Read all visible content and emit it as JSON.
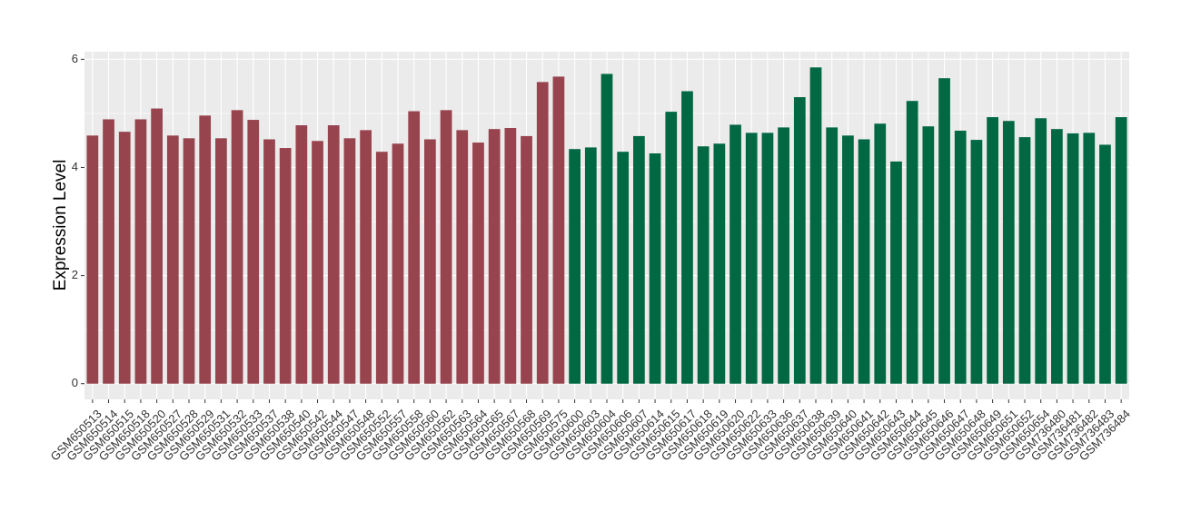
{
  "chart_data": {
    "type": "bar",
    "y_label": "Expression Level",
    "categories": [
      "GSM650513",
      "GSM650514",
      "GSM650515",
      "GSM650518",
      "GSM650520",
      "GSM650527",
      "GSM650528",
      "GSM650529",
      "GSM650531",
      "GSM650532",
      "GSM650533",
      "GSM650537",
      "GSM650538",
      "GSM650540",
      "GSM650542",
      "GSM650544",
      "GSM650547",
      "GSM650548",
      "GSM650552",
      "GSM650557",
      "GSM650558",
      "GSM650560",
      "GSM650562",
      "GSM650563",
      "GSM650564",
      "GSM650565",
      "GSM650567",
      "GSM650568",
      "GSM650569",
      "GSM650575",
      "GSM650600",
      "GSM650603",
      "GSM650604",
      "GSM650606",
      "GSM650607",
      "GSM650614",
      "GSM650615",
      "GSM650617",
      "GSM650618",
      "GSM650619",
      "GSM650620",
      "GSM650622",
      "GSM650633",
      "GSM650636",
      "GSM650637",
      "GSM650638",
      "GSM650639",
      "GSM650640",
      "GSM650641",
      "GSM650642",
      "GSM650643",
      "GSM650644",
      "GSM650645",
      "GSM650646",
      "GSM650647",
      "GSM650648",
      "GSM650649",
      "GSM650651",
      "GSM650652",
      "GSM650654",
      "GSM736480",
      "GSM736481",
      "GSM736482",
      "GSM736483",
      "GSM736484"
    ],
    "values": [
      4.59,
      4.89,
      4.66,
      4.89,
      5.09,
      4.59,
      4.54,
      4.96,
      4.54,
      5.06,
      4.88,
      4.52,
      4.36,
      4.78,
      4.49,
      4.78,
      4.54,
      4.69,
      4.29,
      4.44,
      5.04,
      4.52,
      5.06,
      4.69,
      4.46,
      4.71,
      4.73,
      4.58,
      5.58,
      5.68,
      4.34,
      4.37,
      5.73,
      4.29,
      4.58,
      4.26,
      5.03,
      5.41,
      4.39,
      4.44,
      4.79,
      4.64,
      4.64,
      4.74,
      5.3,
      5.85,
      4.74,
      4.59,
      4.52,
      4.81,
      4.11,
      5.23,
      4.76,
      5.65,
      4.68,
      4.51,
      4.93,
      4.86,
      4.56,
      4.91,
      4.71,
      4.63,
      4.64,
      4.42,
      4.93
    ],
    "colors": [
      "#98444f",
      "#98444f",
      "#98444f",
      "#98444f",
      "#98444f",
      "#98444f",
      "#98444f",
      "#98444f",
      "#98444f",
      "#98444f",
      "#98444f",
      "#98444f",
      "#98444f",
      "#98444f",
      "#98444f",
      "#98444f",
      "#98444f",
      "#98444f",
      "#98444f",
      "#98444f",
      "#98444f",
      "#98444f",
      "#98444f",
      "#98444f",
      "#98444f",
      "#98444f",
      "#98444f",
      "#98444f",
      "#98444f",
      "#98444f",
      "#006843",
      "#006843",
      "#006843",
      "#006843",
      "#006843",
      "#006843",
      "#006843",
      "#006843",
      "#006843",
      "#006843",
      "#006843",
      "#006843",
      "#006843",
      "#006843",
      "#006843",
      "#006843",
      "#006843",
      "#006843",
      "#006843",
      "#006843",
      "#006843",
      "#006843",
      "#006843",
      "#006843",
      "#006843",
      "#006843",
      "#006843",
      "#006843",
      "#006843",
      "#006843",
      "#006843",
      "#006843",
      "#006843",
      "#006843",
      "#006843"
    ],
    "ylim": [
      -0.29,
      6.14
    ],
    "yticks": [
      0,
      2,
      4,
      6
    ],
    "grid": true
  }
}
